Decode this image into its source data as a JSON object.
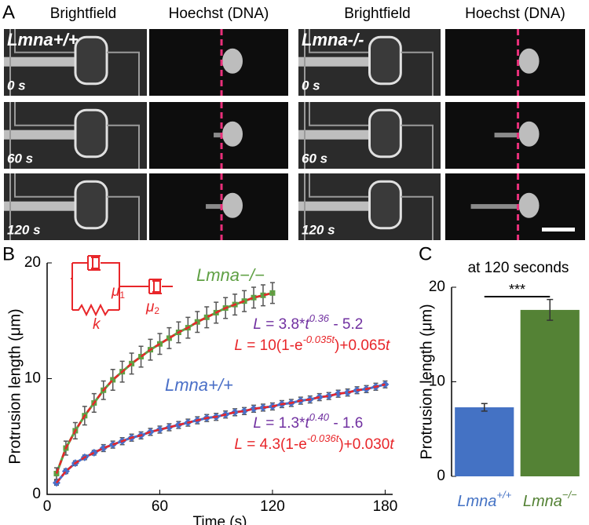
{
  "panel_labels": [
    "A",
    "B",
    "C"
  ],
  "figure_a": {
    "columns": [
      "Brightfield",
      "Hoechst (DNA)",
      "Brightfield",
      "Hoechst (DNA)"
    ],
    "genotypes": [
      "Lmna+/+",
      "Lmna-/-"
    ],
    "times": [
      "0 s",
      "60 s",
      "120 s"
    ]
  },
  "chart_data": [
    {
      "type": "line",
      "xlabel": "Time (s)",
      "ylabel": "Protrusion length (μm)",
      "x": [
        5,
        10,
        15,
        20,
        25,
        30,
        35,
        40,
        45,
        50,
        55,
        60,
        65,
        70,
        75,
        80,
        85,
        90,
        95,
        100,
        105,
        110,
        115,
        120,
        125,
        130,
        135,
        140,
        145,
        150,
        155,
        160,
        165,
        170,
        175,
        180
      ],
      "xlim": [
        0,
        184
      ],
      "xticks": [
        0,
        60,
        120,
        180
      ],
      "ylim": [
        0,
        20
      ],
      "yticks": [
        0,
        10,
        20
      ],
      "fit_color": "#e8262a",
      "series": [
        {
          "name": "Lmna−/−",
          "color": "#5fa044",
          "marker": "square",
          "values": [
            1.8,
            4.0,
            5.5,
            6.8,
            7.9,
            9.0,
            9.9,
            10.6,
            11.3,
            11.9,
            12.5,
            13.0,
            13.5,
            14.0,
            14.4,
            14.9,
            15.3,
            15.7,
            16.1,
            16.4,
            16.7,
            17.0,
            17.2,
            17.4,
            null,
            null,
            null,
            null,
            null,
            null,
            null,
            null,
            null,
            null,
            null,
            null
          ],
          "errors": [
            0.5,
            0.6,
            0.7,
            0.8,
            0.8,
            0.8,
            0.9,
            0.9,
            0.9,
            0.9,
            0.9,
            0.9,
            0.9,
            0.9,
            0.9,
            0.9,
            0.9,
            0.9,
            0.9,
            0.9,
            0.9,
            0.9,
            0.9,
            0.9,
            null,
            null,
            null,
            null,
            null,
            null,
            null,
            null,
            null,
            null,
            null,
            null
          ]
        },
        {
          "name": "Lmna+/+",
          "color": "#4a6fc7",
          "marker": "diamond",
          "values": [
            1.0,
            2.0,
            2.7,
            3.2,
            3.6,
            4.0,
            4.3,
            4.6,
            4.9,
            5.1,
            5.4,
            5.6,
            5.8,
            6.0,
            6.2,
            6.4,
            6.6,
            6.7,
            6.9,
            7.1,
            7.2,
            7.4,
            7.5,
            7.6,
            7.8,
            7.9,
            8.1,
            8.2,
            8.4,
            8.5,
            8.7,
            8.8,
            9.0,
            9.1,
            9.3,
            9.5
          ],
          "errors": [
            0.2,
            0.2,
            0.2,
            0.2,
            0.2,
            0.3,
            0.3,
            0.3,
            0.3,
            0.3,
            0.3,
            0.3,
            0.3,
            0.3,
            0.3,
            0.3,
            0.3,
            0.3,
            0.3,
            0.3,
            0.3,
            0.3,
            0.3,
            0.3,
            0.3,
            0.3,
            0.3,
            0.3,
            0.3,
            0.3,
            0.3,
            0.3,
            0.3,
            0.3,
            0.3,
            0.3
          ]
        }
      ],
      "annotations": [
        {
          "color": "#7030a0",
          "parts": [
            "L",
            " = 3.8*",
            "t",
            "0.36",
            " - 5.2"
          ]
        },
        {
          "color": "#e8262a",
          "parts": [
            "L",
            " = 10(1-e",
            "-0.035t",
            ")+0.065",
            "t"
          ]
        },
        {
          "color": "#7030a0",
          "parts": [
            "L",
            " = 1.3*",
            "t",
            "0.40",
            " - 1.6"
          ]
        },
        {
          "color": "#e8262a",
          "parts": [
            "L",
            " = 4.3(1-e",
            "-0.036t",
            ")+0.030",
            "t"
          ]
        }
      ],
      "circuit": {
        "labels": [
          {
            "base": "μ",
            "sub": "1"
          },
          {
            "base": "μ",
            "sub": "2"
          },
          {
            "base": "k"
          }
        ],
        "color": "#e8262a"
      }
    },
    {
      "type": "bar",
      "title": "at 120 seconds",
      "ylabel": "Protrusion length (μm)",
      "categories": [
        {
          "base": "Lmna",
          "sup": "+/+"
        },
        {
          "base": "Lmna",
          "sup": "−/−"
        }
      ],
      "values": [
        7.3,
        17.6
      ],
      "errors": [
        0.4,
        1.1
      ],
      "colors": [
        "#4472c4",
        "#548235"
      ],
      "ylim": [
        0,
        20
      ],
      "yticks": [
        0,
        10,
        20
      ],
      "significance": "***"
    }
  ]
}
